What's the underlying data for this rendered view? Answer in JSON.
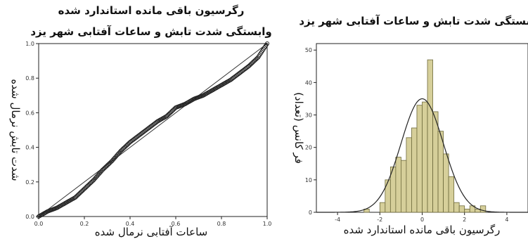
{
  "chart_data": [
    {
      "type": "scatter",
      "subtype": "normal P-P plot",
      "title_line1": "رگرسیون باقی مانده استاندارد شده",
      "title_line2": "وابستگی شدت تابش و ساعات آفتابی شهر یزد",
      "xlabel": "ساعات آفتابی نرمال شده",
      "ylabel": "شدت تابش نرمال شده",
      "xlim": [
        0,
        1
      ],
      "ylim": [
        0,
        1
      ],
      "x_ticks": [
        "0.0",
        "0.2",
        "0.4",
        "0.6",
        "0.8",
        "1.0"
      ],
      "y_ticks": [
        "0.0",
        "0.2",
        "0.4",
        "0.6",
        "0.8",
        "1.0"
      ],
      "reference_line": [
        [
          0,
          0
        ],
        [
          1,
          1
        ]
      ],
      "points": [
        [
          0.0,
          0.0
        ],
        [
          0.04,
          0.03
        ],
        [
          0.08,
          0.05
        ],
        [
          0.12,
          0.08
        ],
        [
          0.16,
          0.11
        ],
        [
          0.2,
          0.16
        ],
        [
          0.24,
          0.21
        ],
        [
          0.28,
          0.27
        ],
        [
          0.32,
          0.32
        ],
        [
          0.36,
          0.38
        ],
        [
          0.4,
          0.43
        ],
        [
          0.44,
          0.47
        ],
        [
          0.48,
          0.51
        ],
        [
          0.52,
          0.55
        ],
        [
          0.56,
          0.58
        ],
        [
          0.6,
          0.63
        ],
        [
          0.64,
          0.65
        ],
        [
          0.68,
          0.68
        ],
        [
          0.72,
          0.7
        ],
        [
          0.76,
          0.73
        ],
        [
          0.8,
          0.76
        ],
        [
          0.84,
          0.79
        ],
        [
          0.88,
          0.83
        ],
        [
          0.92,
          0.87
        ],
        [
          0.96,
          0.92
        ],
        [
          1.0,
          1.0
        ]
      ],
      "grid": false
    },
    {
      "type": "bar",
      "subtype": "histogram with normal curve",
      "title": "وابستگی شدت تابش و ساعات آفتابی شهر یزد",
      "xlabel": "رگرسیون باقی مانده استاندارد شده",
      "ylabel": "فر کانس (تعداد)",
      "xlim": [
        -5,
        5
      ],
      "ylim": [
        0,
        52
      ],
      "x_ticks": [
        "-4",
        "-2",
        "0",
        "2",
        "4"
      ],
      "y_ticks": [
        "0",
        "10",
        "20",
        "30",
        "40",
        "50"
      ],
      "bin_edges": [
        -3.0,
        -2.75,
        -2.5,
        -2.25,
        -2.0,
        -1.75,
        -1.5,
        -1.25,
        -1.0,
        -0.75,
        -0.5,
        -0.25,
        0.0,
        0.25,
        0.5,
        0.75,
        1.0,
        1.25,
        1.5,
        1.75,
        2.0,
        2.25,
        2.5,
        2.75,
        3.0
      ],
      "values": [
        0,
        1,
        0,
        0,
        3,
        10,
        14,
        17,
        16,
        23,
        26,
        33,
        34,
        47,
        31,
        25,
        18,
        11,
        3,
        2,
        1,
        2,
        1,
        2
      ],
      "normal_curve": {
        "mean": 0.0,
        "sd": 1.0,
        "peak": 35
      },
      "bar_color": "#d6cf9a",
      "bar_edge": "#6e6a3c",
      "grid": false
    }
  ]
}
